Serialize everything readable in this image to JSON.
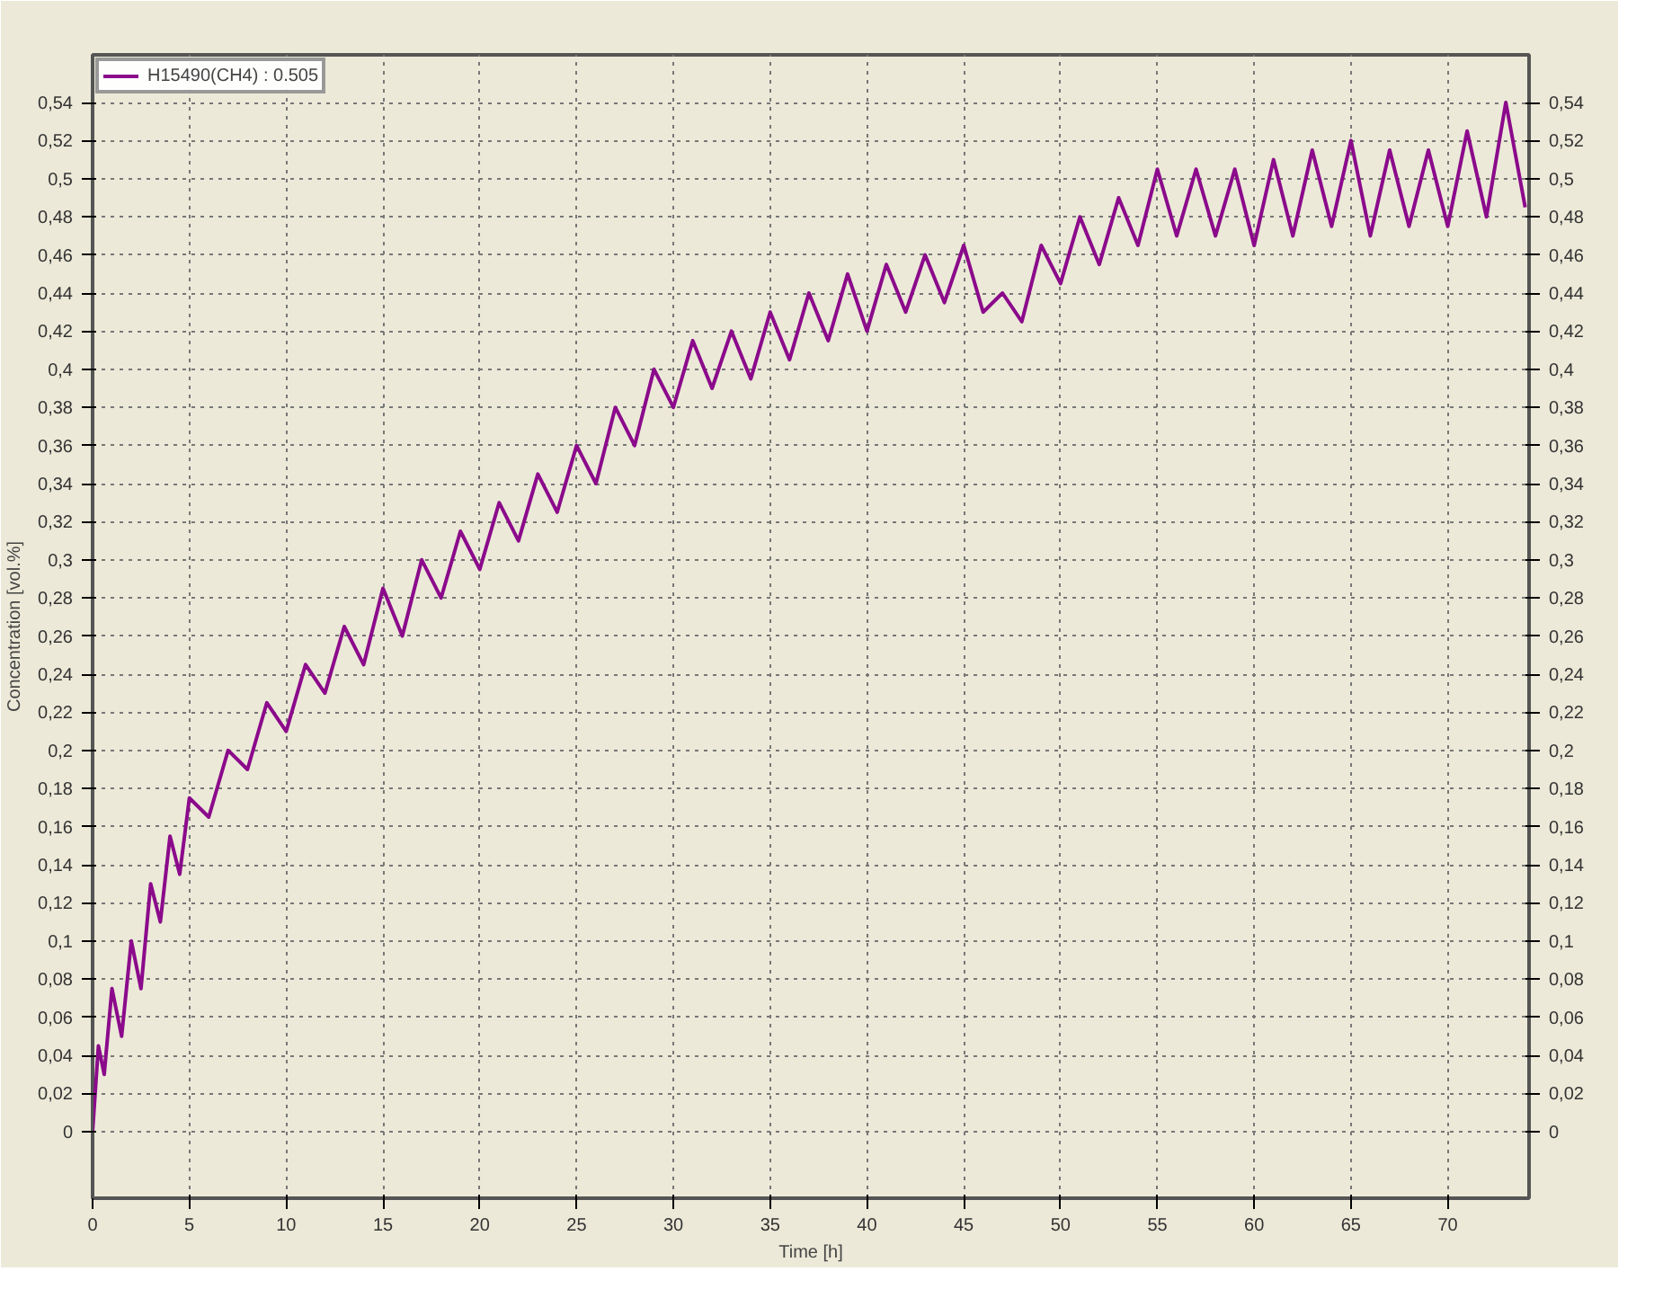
{
  "chart_data": {
    "type": "line",
    "xlabel": "Time [h]",
    "ylabel": "Concentration [vol.%]",
    "x": [
      0,
      0.3,
      0.6,
      1,
      1.5,
      2,
      2.5,
      3,
      3.5,
      4,
      4.5,
      5,
      6,
      7,
      8,
      9,
      10,
      11,
      12,
      13,
      14,
      15,
      16,
      17,
      18,
      19,
      20,
      21,
      22,
      23,
      24,
      25,
      26,
      27,
      28,
      29,
      30,
      31,
      32,
      33,
      34,
      35,
      36,
      37,
      38,
      39,
      40,
      41,
      42,
      43,
      44,
      45,
      46,
      47,
      48,
      49,
      50,
      51,
      52,
      53,
      54,
      55,
      56,
      57,
      58,
      59,
      60,
      61,
      62,
      63,
      64,
      65,
      66,
      67,
      68,
      69,
      70,
      71,
      72,
      73,
      74
    ],
    "series": [
      {
        "name": "H15490(CH4) : 0.505",
        "color": "#8b0a8b",
        "values": [
          0.0,
          0.045,
          0.03,
          0.075,
          0.05,
          0.1,
          0.075,
          0.13,
          0.11,
          0.155,
          0.135,
          0.175,
          0.165,
          0.2,
          0.19,
          0.225,
          0.21,
          0.245,
          0.23,
          0.265,
          0.245,
          0.285,
          0.26,
          0.3,
          0.28,
          0.315,
          0.295,
          0.33,
          0.31,
          0.345,
          0.325,
          0.36,
          0.34,
          0.38,
          0.36,
          0.4,
          0.38,
          0.415,
          0.39,
          0.42,
          0.395,
          0.43,
          0.405,
          0.44,
          0.415,
          0.45,
          0.42,
          0.455,
          0.43,
          0.46,
          0.435,
          0.465,
          0.43,
          0.44,
          0.425,
          0.465,
          0.445,
          0.48,
          0.455,
          0.49,
          0.465,
          0.505,
          0.47,
          0.505,
          0.47,
          0.505,
          0.465,
          0.51,
          0.47,
          0.515,
          0.475,
          0.52,
          0.47,
          0.515,
          0.475,
          0.515,
          0.475,
          0.525,
          0.48,
          0.54,
          0.485
        ]
      }
    ],
    "xlim": [
      0,
      74.2
    ],
    "xticks": [
      0,
      5,
      10,
      15,
      20,
      25,
      30,
      35,
      40,
      45,
      50,
      55,
      60,
      65,
      70
    ],
    "ylim": [
      -0.035,
      0.565
    ],
    "yticks": [
      0,
      {
        "value": 0.02,
        "label": "0,02"
      },
      {
        "value": 0.04,
        "label": "0,04"
      },
      {
        "value": 0.06,
        "label": "0,06"
      },
      {
        "value": 0.08,
        "label": "0,08"
      },
      {
        "value": 0.1,
        "label": "0,1"
      },
      {
        "value": 0.12,
        "label": "0,12"
      },
      {
        "value": 0.14,
        "label": "0,14"
      },
      {
        "value": 0.16,
        "label": "0,16"
      },
      {
        "value": 0.18,
        "label": "0,18"
      },
      {
        "value": 0.2,
        "label": "0,2"
      },
      {
        "value": 0.22,
        "label": "0,22"
      },
      {
        "value": 0.24,
        "label": "0,24"
      },
      {
        "value": 0.26,
        "label": "0,26"
      },
      {
        "value": 0.28,
        "label": "0,28"
      },
      {
        "value": 0.3,
        "label": "0,3"
      },
      {
        "value": 0.32,
        "label": "0,32"
      },
      {
        "value": 0.34,
        "label": "0,34"
      },
      {
        "value": 0.36,
        "label": "0,36"
      },
      {
        "value": 0.38,
        "label": "0,38"
      },
      {
        "value": 0.4,
        "label": "0,4"
      },
      {
        "value": 0.42,
        "label": "0,42"
      },
      {
        "value": 0.44,
        "label": "0,44"
      },
      {
        "value": 0.46,
        "label": "0,46"
      },
      {
        "value": 0.48,
        "label": "0,48"
      },
      {
        "value": 0.5,
        "label": "0,5"
      },
      {
        "value": 0.52,
        "label": "0,52"
      },
      {
        "value": 0.54,
        "label": "0,54"
      }
    ],
    "y2lim": [
      -0.035,
      0.565
    ],
    "y2ticks": [
      0,
      {
        "value": 0.02,
        "label": "0,02"
      },
      {
        "value": 0.04,
        "label": "0,04"
      },
      {
        "value": 0.06,
        "label": "0,06"
      },
      {
        "value": 0.08,
        "label": "0,08"
      },
      {
        "value": 0.1,
        "label": "0,1"
      },
      {
        "value": 0.12,
        "label": "0,12"
      },
      {
        "value": 0.14,
        "label": "0,14"
      },
      {
        "value": 0.16,
        "label": "0,16"
      },
      {
        "value": 0.18,
        "label": "0,18"
      },
      {
        "value": 0.2,
        "label": "0,2"
      },
      {
        "value": 0.22,
        "label": "0,22"
      },
      {
        "value": 0.24,
        "label": "0,24"
      },
      {
        "value": 0.26,
        "label": "0,26"
      },
      {
        "value": 0.28,
        "label": "0,28"
      },
      {
        "value": 0.3,
        "label": "0,3"
      },
      {
        "value": 0.32,
        "label": "0,32"
      },
      {
        "value": 0.34,
        "label": "0,34"
      },
      {
        "value": 0.36,
        "label": "0,36"
      },
      {
        "value": 0.38,
        "label": "0,38"
      },
      {
        "value": 0.4,
        "label": "0,4"
      },
      {
        "value": 0.42,
        "label": "0,42"
      },
      {
        "value": 0.44,
        "label": "0,44"
      },
      {
        "value": 0.46,
        "label": "0,46"
      },
      {
        "value": 0.48,
        "label": "0,48"
      },
      {
        "value": 0.5,
        "label": "0,5"
      },
      {
        "value": 0.52,
        "label": "0,52"
      },
      {
        "value": 0.54,
        "label": "0,54"
      }
    ],
    "grid": true,
    "legend": "top left",
    "line_style": "solid"
  }
}
